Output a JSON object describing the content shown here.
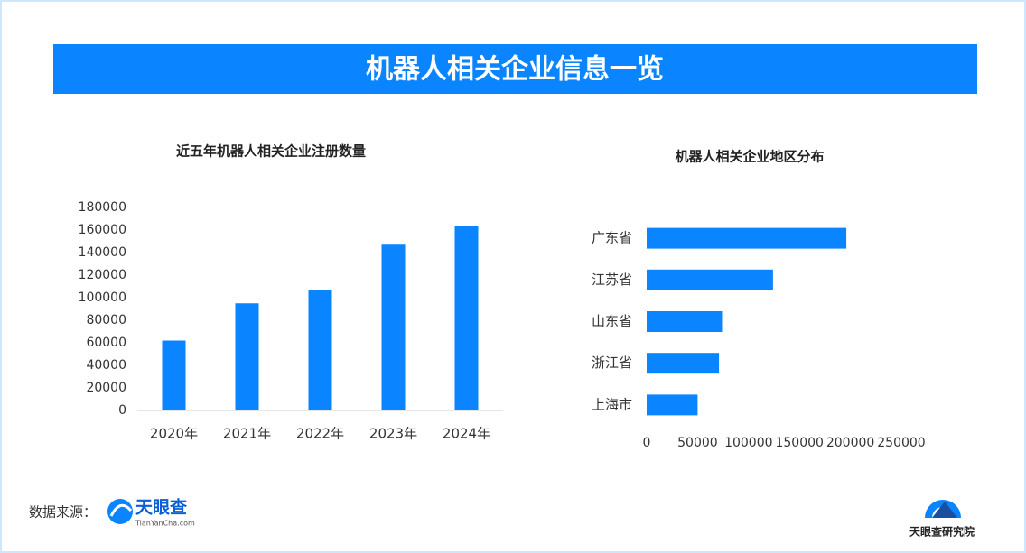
{
  "header": {
    "title": "机器人相关企业信息一览"
  },
  "chart_data": [
    {
      "type": "bar",
      "orientation": "vertical",
      "title": "近五年机器人相关企业注册数量",
      "categories": [
        "2020年",
        "2021年",
        "2022年",
        "2023年",
        "2024年"
      ],
      "values": [
        62000,
        95000,
        107000,
        147000,
        164000
      ],
      "color": "#0a84ff",
      "ylim": [
        0,
        180000
      ],
      "yticks": [
        0,
        20000,
        40000,
        60000,
        80000,
        100000,
        120000,
        140000,
        160000,
        180000
      ],
      "grid": false
    },
    {
      "type": "bar",
      "orientation": "horizontal",
      "title": "机器人相关企业地区分布",
      "categories": [
        "广东省",
        "江苏省",
        "山东省",
        "浙江省",
        "上海市"
      ],
      "values": [
        196000,
        124000,
        74000,
        71000,
        50000
      ],
      "color": "#0a84ff",
      "xlim": [
        0,
        250000
      ],
      "xticks": [
        0,
        50000,
        100000,
        150000,
        200000,
        250000
      ],
      "grid": false
    }
  ],
  "footer": {
    "source_label": "数据来源：",
    "logo_text": "天眼查",
    "logo_subtext": "TianYanCha.com",
    "brand": "天眼查研究院"
  }
}
